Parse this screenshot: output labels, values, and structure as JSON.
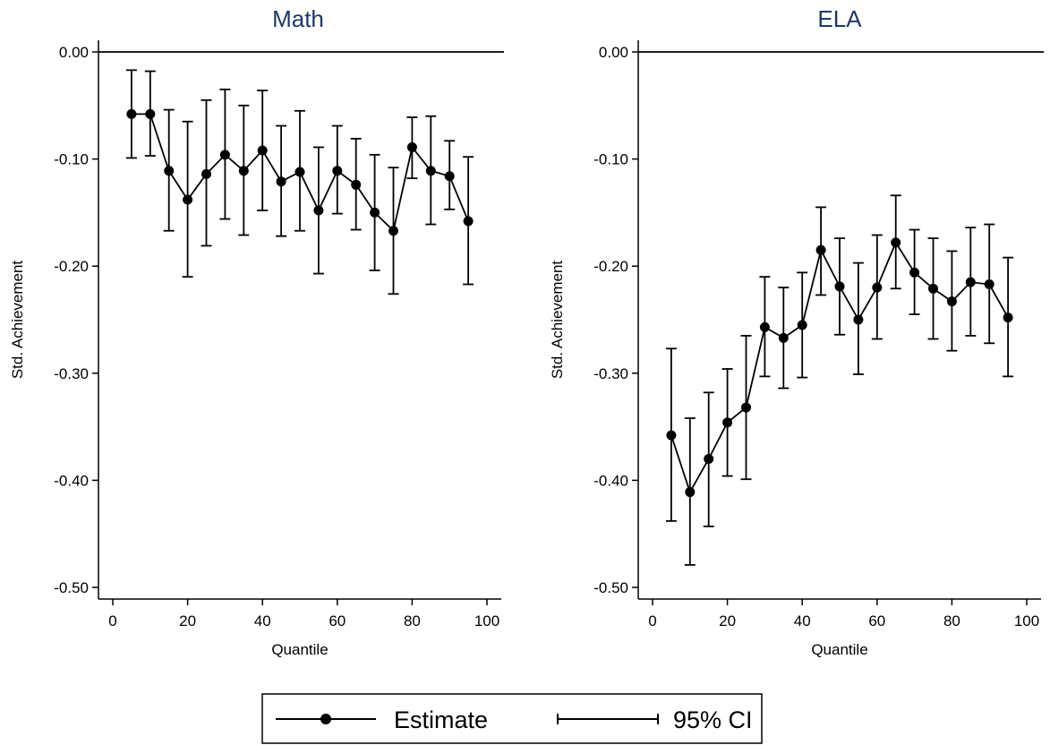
{
  "chart_data": [
    {
      "type": "line",
      "title": "Math",
      "xlabel": "Quantile",
      "ylabel": "Std. Achievement",
      "xlim": [
        0,
        100
      ],
      "ylim": [
        -0.5,
        0.0
      ],
      "xticks": [
        "0",
        "20",
        "40",
        "60",
        "80",
        "100"
      ],
      "yticks": [
        "0.00",
        "-0.10",
        "-0.20",
        "-0.30",
        "-0.40",
        "-0.50"
      ],
      "reference_line_y": 0.0,
      "grid": false,
      "series": [
        {
          "name": "Estimate",
          "x": [
            5,
            10,
            15,
            20,
            25,
            30,
            35,
            40,
            45,
            50,
            55,
            60,
            65,
            70,
            75,
            80,
            85,
            90,
            95
          ],
          "y": [
            -0.058,
            -0.058,
            -0.111,
            -0.138,
            -0.114,
            -0.096,
            -0.111,
            -0.092,
            -0.121,
            -0.112,
            -0.148,
            -0.111,
            -0.124,
            -0.15,
            -0.167,
            -0.089,
            -0.111,
            -0.116,
            -0.158
          ],
          "ci_low": [
            -0.099,
            -0.097,
            -0.167,
            -0.21,
            -0.181,
            -0.156,
            -0.171,
            -0.148,
            -0.172,
            -0.167,
            -0.207,
            -0.151,
            -0.166,
            -0.204,
            -0.226,
            -0.118,
            -0.161,
            -0.147,
            -0.217
          ],
          "ci_high": [
            -0.017,
            -0.018,
            -0.054,
            -0.065,
            -0.045,
            -0.035,
            -0.05,
            -0.036,
            -0.069,
            -0.055,
            -0.089,
            -0.069,
            -0.081,
            -0.096,
            -0.108,
            -0.061,
            -0.06,
            -0.083,
            -0.098
          ]
        }
      ]
    },
    {
      "type": "line",
      "title": "ELA",
      "xlabel": "Quantile",
      "ylabel": "Std. Achievement",
      "xlim": [
        0,
        100
      ],
      "ylim": [
        -0.5,
        0.0
      ],
      "xticks": [
        "0",
        "20",
        "40",
        "60",
        "80",
        "100"
      ],
      "yticks": [
        "0.00",
        "-0.10",
        "-0.20",
        "-0.30",
        "-0.40",
        "-0.50"
      ],
      "reference_line_y": 0.0,
      "grid": false,
      "series": [
        {
          "name": "Estimate",
          "x": [
            5,
            10,
            15,
            20,
            25,
            30,
            35,
            40,
            45,
            50,
            55,
            60,
            65,
            70,
            75,
            80,
            85,
            90,
            95
          ],
          "y": [
            -0.358,
            -0.411,
            -0.38,
            -0.346,
            -0.332,
            -0.257,
            -0.267,
            -0.255,
            -0.185,
            -0.219,
            -0.25,
            -0.22,
            -0.178,
            -0.206,
            -0.221,
            -0.233,
            -0.215,
            -0.217,
            -0.248
          ],
          "ci_low": [
            -0.438,
            -0.479,
            -0.443,
            -0.396,
            -0.399,
            -0.303,
            -0.314,
            -0.304,
            -0.227,
            -0.264,
            -0.301,
            -0.268,
            -0.221,
            -0.245,
            -0.268,
            -0.279,
            -0.265,
            -0.272,
            -0.303
          ],
          "ci_high": [
            -0.277,
            -0.342,
            -0.318,
            -0.296,
            -0.265,
            -0.21,
            -0.22,
            -0.206,
            -0.145,
            -0.174,
            -0.197,
            -0.171,
            -0.134,
            -0.166,
            -0.174,
            -0.186,
            -0.164,
            -0.161,
            -0.192
          ]
        }
      ]
    }
  ],
  "legend": {
    "position": "bottom-center",
    "items": [
      {
        "label": "Estimate",
        "symbol": "line-with-dot"
      },
      {
        "label": "95% CI",
        "symbol": "capped-range"
      }
    ]
  },
  "colors": {
    "title": "#1c3a66",
    "series": "#000000"
  }
}
